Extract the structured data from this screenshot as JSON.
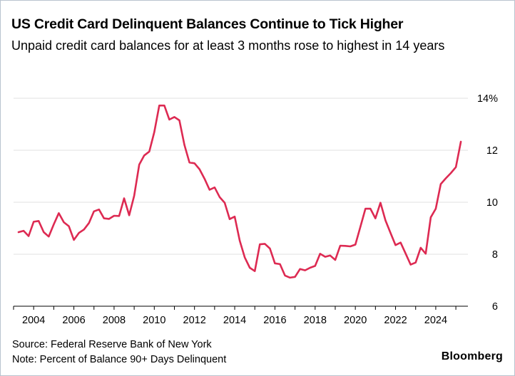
{
  "header": {
    "title": "US Credit Card Delinquent Balances Continue to Tick Higher",
    "subtitle": "Unpaid credit card balances for at least 3 months rose to highest in 14 years"
  },
  "footer": {
    "source": "Source: Federal Reserve Bank of New York",
    "note": "Note: Percent of Balance 90+ Days Delinquent",
    "brand": "Bloomberg"
  },
  "colors": {
    "line": "#dd2a52",
    "grid": "#e2e2e2",
    "axis": "#000000"
  },
  "chart_data": {
    "type": "line",
    "title": "US Credit Card Delinquent Balances Continue to Tick Higher",
    "subtitle": "Unpaid credit card balances for at least 3 months rose to highest in 14 years",
    "xlabel": "",
    "ylabel": "",
    "xlim": [
      2003.0,
      2025.6
    ],
    "ylim": [
      6,
      14
    ],
    "x_ticks": [
      2004,
      2006,
      2008,
      2010,
      2012,
      2014,
      2016,
      2018,
      2020,
      2022,
      2024
    ],
    "x_tick_labels": [
      "2004",
      "2006",
      "2008",
      "2010",
      "2012",
      "2014",
      "2016",
      "2018",
      "2020",
      "2022",
      "2024"
    ],
    "y_ticks": [
      6,
      8,
      10,
      12,
      14
    ],
    "y_tick_labels": [
      "6",
      "8",
      "10",
      "12",
      "14%"
    ],
    "grid": "horizontal",
    "legend": "none",
    "series": [
      {
        "x": [
          2003.25,
          2003.5,
          2003.75,
          2004.0,
          2004.25,
          2004.5,
          2004.75,
          2005.0,
          2005.25,
          2005.5,
          2005.75,
          2006.0,
          2006.25,
          2006.5,
          2006.75,
          2007.0,
          2007.25,
          2007.5,
          2007.75,
          2008.0,
          2008.25,
          2008.5,
          2008.75,
          2009.0,
          2009.25,
          2009.5,
          2009.75,
          2010.0,
          2010.25,
          2010.5,
          2010.75,
          2011.0,
          2011.25,
          2011.5,
          2011.75,
          2012.0,
          2012.25,
          2012.5,
          2012.75,
          2013.0,
          2013.25,
          2013.5,
          2013.75,
          2014.0,
          2014.25,
          2014.5,
          2014.75,
          2015.0,
          2015.25,
          2015.5,
          2015.75,
          2016.0,
          2016.25,
          2016.5,
          2016.75,
          2017.0,
          2017.25,
          2017.5,
          2017.75,
          2018.0,
          2018.25,
          2018.5,
          2018.75,
          2019.0,
          2019.25,
          2019.5,
          2019.75,
          2020.0,
          2020.25,
          2020.5,
          2020.75,
          2021.0,
          2021.25,
          2021.5,
          2021.75,
          2022.0,
          2022.25,
          2022.5,
          2022.75,
          2023.0,
          2023.25,
          2023.5,
          2023.75,
          2024.0,
          2024.25,
          2024.5,
          2024.75,
          2025.0,
          2025.25
        ],
        "y": [
          8.85,
          8.9,
          8.7,
          9.25,
          9.28,
          8.85,
          8.68,
          9.15,
          9.58,
          9.23,
          9.08,
          8.55,
          8.82,
          8.95,
          9.2,
          9.65,
          9.72,
          9.38,
          9.36,
          9.48,
          9.47,
          10.15,
          9.5,
          10.25,
          11.45,
          11.8,
          11.95,
          12.7,
          13.72,
          13.72,
          13.18,
          13.28,
          13.15,
          12.2,
          11.53,
          11.5,
          11.27,
          10.9,
          10.48,
          10.57,
          10.2,
          9.98,
          9.35,
          9.45,
          8.52,
          7.88,
          7.48,
          7.35,
          8.38,
          8.4,
          8.22,
          7.65,
          7.62,
          7.18,
          7.1,
          7.13,
          7.43,
          7.38,
          7.48,
          7.55,
          8.02,
          7.9,
          7.95,
          7.78,
          8.33,
          8.32,
          8.3,
          8.37,
          9.05,
          9.75,
          9.75,
          9.38,
          9.98,
          9.3,
          8.82,
          8.35,
          8.45,
          8.03,
          7.6,
          7.68,
          8.25,
          8.02,
          9.42,
          9.75,
          10.7,
          10.92,
          11.12,
          11.35,
          12.33
        ]
      }
    ]
  }
}
